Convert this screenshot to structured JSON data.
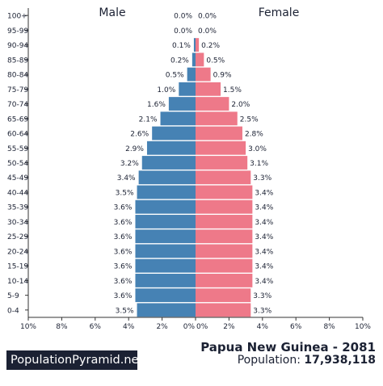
{
  "chart_data": {
    "type": "bar",
    "orientation": "horizontal-pyramid",
    "categories": [
      "100+",
      "95-99",
      "90-94",
      "85-89",
      "80-84",
      "75-79",
      "70-74",
      "65-69",
      "60-64",
      "55-59",
      "50-54",
      "45-49",
      "40-44",
      "35-39",
      "30-34",
      "25-29",
      "20-24",
      "15-19",
      "10-14",
      "5-9",
      "0-4"
    ],
    "series": [
      {
        "name": "Male",
        "color": "#4682b4",
        "values": [
          0.0,
          0.0,
          0.1,
          0.2,
          0.5,
          1.0,
          1.6,
          2.1,
          2.6,
          2.9,
          3.2,
          3.4,
          3.5,
          3.6,
          3.6,
          3.6,
          3.6,
          3.6,
          3.6,
          3.6,
          3.5
        ],
        "labels": [
          "0.0%",
          "0.0%",
          "0.1%",
          "0.2%",
          "0.5%",
          "1.0%",
          "1.6%",
          "2.1%",
          "2.6%",
          "2.9%",
          "3.2%",
          "3.4%",
          "3.5%",
          "3.6%",
          "3.6%",
          "3.6%",
          "3.6%",
          "3.6%",
          "3.6%",
          "3.6%",
          "3.5%"
        ]
      },
      {
        "name": "Female",
        "color": "#ee7989",
        "values": [
          0.0,
          0.0,
          0.2,
          0.5,
          0.9,
          1.5,
          2.0,
          2.5,
          2.8,
          3.0,
          3.1,
          3.3,
          3.4,
          3.4,
          3.4,
          3.4,
          3.4,
          3.4,
          3.4,
          3.3,
          3.3
        ],
        "labels": [
          "0.0%",
          "0.0%",
          "0.2%",
          "0.5%",
          "0.9%",
          "1.5%",
          "2.0%",
          "2.5%",
          "2.8%",
          "3.0%",
          "3.1%",
          "3.3%",
          "3.4%",
          "3.4%",
          "3.4%",
          "3.4%",
          "3.4%",
          "3.4%",
          "3.4%",
          "3.3%",
          "3.3%"
        ]
      }
    ],
    "xlim": [
      0,
      10
    ],
    "x_ticks_left": [
      "10%",
      "8%",
      "6%",
      "4%",
      "2%",
      "0%"
    ],
    "x_ticks_right": [
      "0%",
      "2%",
      "4%",
      "6%",
      "8%",
      "10%"
    ],
    "grid": false,
    "legend": "top"
  },
  "brand": "PopulationPyramid.net",
  "title": "Papua New Guinea - 2081",
  "population_label": "Population:",
  "population_value": "17,938,118"
}
